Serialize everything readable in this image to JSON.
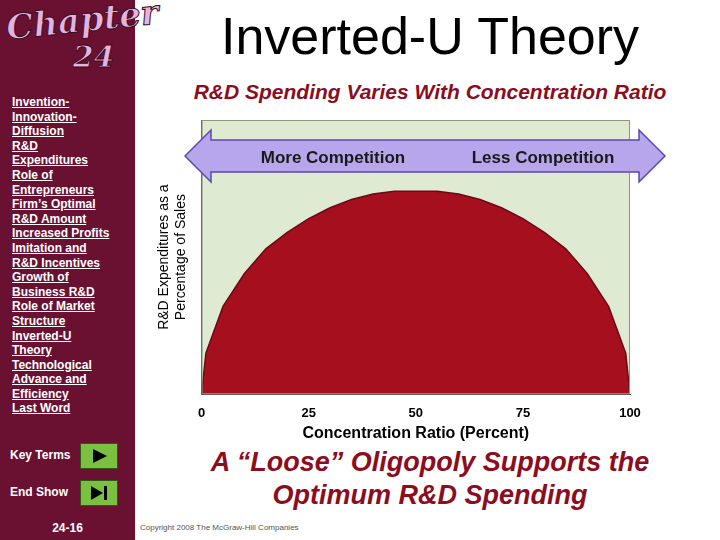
{
  "chart_data": {
    "type": "area",
    "title": "Inverted-U Theory",
    "subtitle": "R&D Spending Varies With Concentration Ratio",
    "x_label": "Concentration Ratio (Percent)",
    "y_label": [
      "R&D Expenditures as a",
      "Percentage of Sales"
    ],
    "annotations": [
      "More Competition",
      "Less Competition",
      "A “Loose” Oligopoly Supports the Optimum R&D Spending"
    ],
    "x": [
      0,
      1,
      5,
      10,
      15,
      20,
      25,
      30,
      35,
      40,
      45,
      50,
      55,
      60,
      65,
      70,
      75,
      80,
      85,
      90,
      95,
      99,
      100
    ],
    "values": [
      0,
      15,
      32,
      44,
      53,
      59,
      64,
      68,
      71,
      73,
      74,
      74,
      74,
      73,
      71,
      68,
      64,
      59,
      53,
      44,
      32,
      15,
      0
    ],
    "color": "#a50f1e",
    "xlim": [
      0,
      100
    ],
    "xticks": [
      0,
      25,
      50,
      75,
      100
    ],
    "ylim": [
      0,
      100
    ],
    "tick_labels": "x",
    "grid": false
  },
  "slide": {
    "chapter": "Chapter",
    "chapter_number": "24",
    "menu": [
      "Invention-Innovation-Diffusion",
      "R&D Expenditures",
      "Role of Entrepreneurs",
      "Firm’s Optimal R&D Amount",
      "Increased Profits",
      "Imitation and R&D Incentives",
      "Growth of Business R&D",
      "Role of Market Structure",
      "Inverted-U Theory",
      "Technological Advance and Efficiency",
      "Last Word"
    ],
    "buttons": [
      "Key Terms",
      "End Show"
    ],
    "page": "24-16",
    "copyright": "Copyright 2008 The McGraw-Hill Companies"
  }
}
